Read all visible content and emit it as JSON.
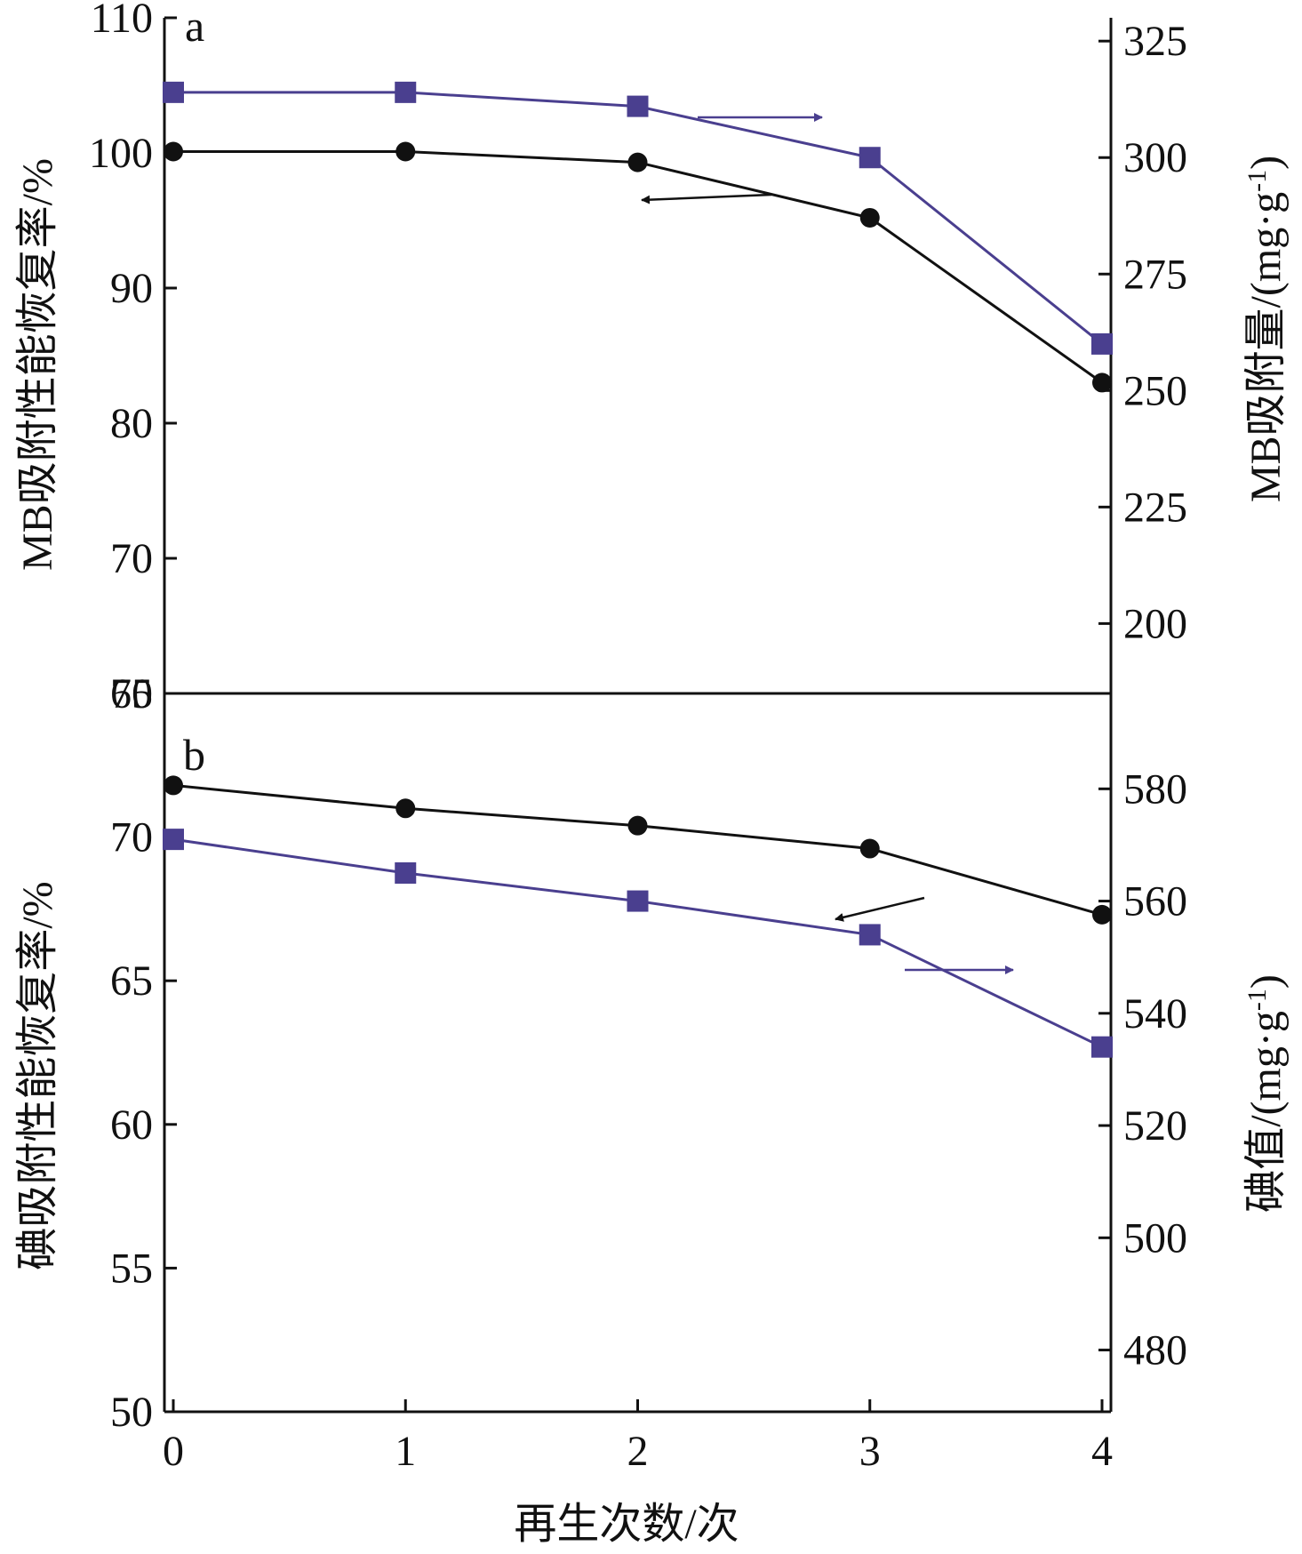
{
  "chart_data": [
    {
      "type": "line",
      "panel_label": "a",
      "x": [
        0,
        1,
        2,
        3,
        4
      ],
      "xlim": [
        0,
        4
      ],
      "ylabel_left": "MB吸附性能恢复率/%",
      "ylabel_right": "MB吸附量/(mg·g",
      "ylabel_right_sup": "-1",
      "ylabel_right_close": ")",
      "ylim_left": [
        60,
        110
      ],
      "ylim_right": [
        185,
        330
      ],
      "yticks_left": [
        60,
        70,
        80,
        90,
        100,
        110
      ],
      "yticks_right": [
        200,
        225,
        250,
        275,
        300,
        325
      ],
      "series": [
        {
          "axis": "left",
          "marker": "circle",
          "color": "#111111",
          "values": [
            100.1,
            100.1,
            99.3,
            95.2,
            83.0
          ]
        },
        {
          "axis": "right",
          "marker": "square",
          "color": "#4a3f8f",
          "values": [
            314,
            314,
            311,
            300,
            260
          ]
        }
      ]
    },
    {
      "type": "line",
      "panel_label": "b",
      "x": [
        0,
        1,
        2,
        3,
        4
      ],
      "xlim": [
        0,
        4
      ],
      "xlabel": "再生次数/次",
      "xticks": [
        "0",
        "1",
        "2",
        "3",
        "4"
      ],
      "ylabel_left": "碘吸附性能恢复率/%",
      "ylabel_right": "碘值/(mg·g",
      "ylabel_right_sup": "-1",
      "ylabel_right_close": ")",
      "ylim_left": [
        50,
        75
      ],
      "ylim_right": [
        469,
        597
      ],
      "yticks_left": [
        50,
        55,
        60,
        65,
        70,
        75
      ],
      "yticks_right": [
        480,
        500,
        520,
        540,
        560,
        580
      ],
      "series": [
        {
          "axis": "left",
          "marker": "circle",
          "color": "#111111",
          "values": [
            71.8,
            71.0,
            70.4,
            69.6,
            67.3
          ]
        },
        {
          "axis": "right",
          "marker": "square",
          "color": "#4a3f8f",
          "values": [
            571,
            565,
            560,
            554,
            534
          ]
        }
      ]
    }
  ]
}
